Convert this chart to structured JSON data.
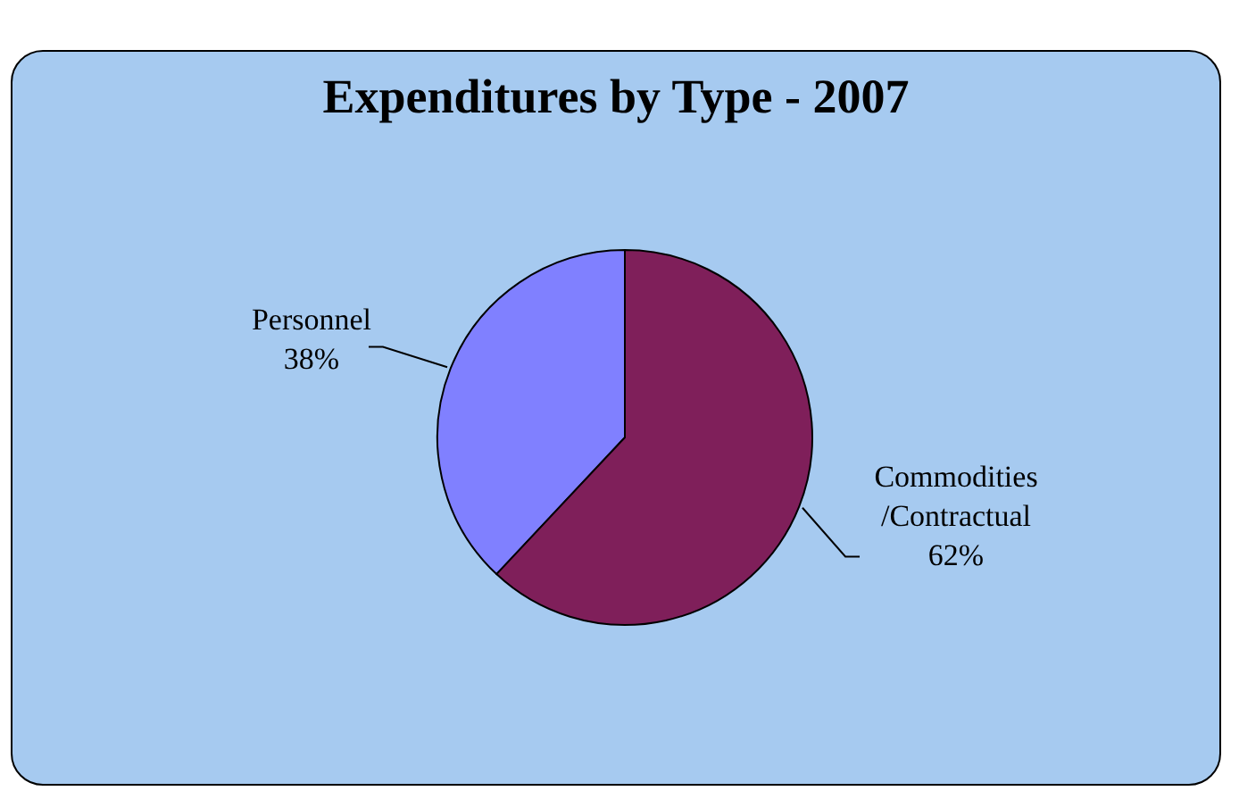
{
  "chart_data": {
    "type": "pie",
    "title": "Expenditures by Type - 2007",
    "categories": [
      "Personnel",
      "Commodities /Contractual"
    ],
    "values": [
      38,
      62
    ],
    "value_labels": [
      "38%",
      "62%"
    ],
    "colors": [
      "#8080ff",
      "#7f1f5a"
    ],
    "legend": false
  }
}
